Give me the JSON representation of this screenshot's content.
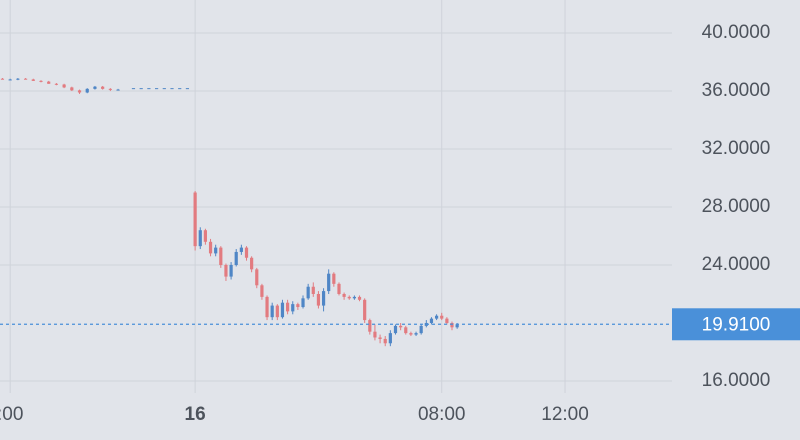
{
  "chart_data": {
    "type": "candlestick",
    "x": [
      -6.25,
      -6,
      -5.75,
      -5.5,
      -5.25,
      -5,
      -4.75,
      -4.5,
      -4.25,
      -4,
      -3.75,
      -3.5,
      -3.25,
      -3,
      -2.75,
      -2.5,
      -2,
      -1.75,
      -1.5,
      -1.25,
      -1,
      -0.75,
      -0.5,
      -0.25,
      0,
      0.167,
      0.333,
      0.5,
      0.667,
      0.833,
      1,
      1.167,
      1.333,
      1.5,
      1.667,
      1.833,
      2,
      2.167,
      2.333,
      2.5,
      2.667,
      2.833,
      3,
      3.167,
      3.333,
      3.5,
      3.667,
      3.833,
      4,
      4.167,
      4.333,
      4.5,
      4.667,
      4.833,
      5,
      5.167,
      5.333,
      5.5,
      5.667,
      5.833,
      6,
      6.167,
      6.333,
      6.5,
      6.667,
      6.833,
      7,
      7.167,
      7.333,
      7.5,
      7.667,
      7.833,
      8,
      8.167,
      8.333,
      8.5
    ],
    "open": [
      36.85,
      36.8,
      36.8,
      36.85,
      36.8,
      36.7,
      36.65,
      36.5,
      36.45,
      36.25,
      36.05,
      35.9,
      36.15,
      36.3,
      36.15,
      36.1,
      36.2,
      36.2,
      36.2,
      36.2,
      36.2,
      36.2,
      36.2,
      36.2,
      29.0,
      25.3,
      26.4,
      25.6,
      24.8,
      25.2,
      24.0,
      23.2,
      24.0,
      24.9,
      25.2,
      24.5,
      23.7,
      22.6,
      21.8,
      20.4,
      21.2,
      20.4,
      21.4,
      20.8,
      21.3,
      21.1,
      21.7,
      22.5,
      22.0,
      21.2,
      22.2,
      23.4,
      22.7,
      22.0,
      21.8,
      21.7,
      21.8,
      21.6,
      20.2,
      19.4,
      19.0,
      18.9,
      18.6,
      19.3,
      19.8,
      19.7,
      19.3,
      19.2,
      19.3,
      19.8,
      20.0,
      20.3,
      20.5,
      20.3,
      20.0,
      19.7
    ],
    "high": [
      36.9,
      36.85,
      36.9,
      36.9,
      36.85,
      36.75,
      36.7,
      36.55,
      36.5,
      36.3,
      36.1,
      36.2,
      36.35,
      36.35,
      36.2,
      36.15,
      36.2,
      36.2,
      36.2,
      36.2,
      36.2,
      36.2,
      36.2,
      36.2,
      29.1,
      26.6,
      26.5,
      25.8,
      25.4,
      25.3,
      24.1,
      24.2,
      25.1,
      25.4,
      25.3,
      24.6,
      23.8,
      22.7,
      21.9,
      21.4,
      21.3,
      21.6,
      21.6,
      21.5,
      21.4,
      21.9,
      22.7,
      22.8,
      22.2,
      22.4,
      23.7,
      23.5,
      22.8,
      22.1,
      21.9,
      21.9,
      21.9,
      21.7,
      20.3,
      19.9,
      19.2,
      19.1,
      19.5,
      19.9,
      20.0,
      19.8,
      19.4,
      19.4,
      19.9,
      20.2,
      20.4,
      20.6,
      20.7,
      20.4,
      20.1,
      20.0
    ],
    "low": [
      36.8,
      36.75,
      36.75,
      36.8,
      36.7,
      36.6,
      36.5,
      36.4,
      36.2,
      36.0,
      35.8,
      35.85,
      36.1,
      36.1,
      36.0,
      36.05,
      36.2,
      36.2,
      36.2,
      36.2,
      36.2,
      36.2,
      36.2,
      36.2,
      25.0,
      25.1,
      25.4,
      24.6,
      24.6,
      23.8,
      22.9,
      23.0,
      23.9,
      24.7,
      24.3,
      23.5,
      22.4,
      21.6,
      20.2,
      20.2,
      20.2,
      20.3,
      20.6,
      20.6,
      20.9,
      21.0,
      21.6,
      21.8,
      21.0,
      20.8,
      22.0,
      22.5,
      21.9,
      21.6,
      21.6,
      21.6,
      21.5,
      20.0,
      19.2,
      18.8,
      18.6,
      18.4,
      18.4,
      19.2,
      19.5,
      19.2,
      19.1,
      19.1,
      19.2,
      19.7,
      19.9,
      20.2,
      20.2,
      19.9,
      19.5,
      19.6
    ],
    "close": [
      36.8,
      36.8,
      36.85,
      36.8,
      36.7,
      36.65,
      36.5,
      36.45,
      36.25,
      36.05,
      35.9,
      36.15,
      36.3,
      36.15,
      36.1,
      36.1,
      36.2,
      36.2,
      36.2,
      36.2,
      36.2,
      36.2,
      36.2,
      36.2,
      25.3,
      26.4,
      25.6,
      24.8,
      25.2,
      24.0,
      23.2,
      24.0,
      24.9,
      25.2,
      24.5,
      23.7,
      22.6,
      21.8,
      20.4,
      21.2,
      20.4,
      21.4,
      20.8,
      21.3,
      21.1,
      21.7,
      22.5,
      22.0,
      21.2,
      22.2,
      23.4,
      22.7,
      22.0,
      21.8,
      21.7,
      21.8,
      21.6,
      20.2,
      19.4,
      19.0,
      18.9,
      18.6,
      19.3,
      19.8,
      19.7,
      19.3,
      19.2,
      19.3,
      19.8,
      20.0,
      20.3,
      20.5,
      20.3,
      20.0,
      19.7,
      19.91
    ],
    "up_color": "#4f86c6",
    "down_color": "#e27b80",
    "xlim": [
      -6.33,
      15.47
    ],
    "xticks": [
      {
        "value": -6,
        "label": ":00"
      },
      {
        "value": 0,
        "label": "16"
      },
      {
        "value": 8,
        "label": "08:00"
      },
      {
        "value": 12,
        "label": "12:00"
      }
    ],
    "ylim": [
      15.17,
      42.28
    ],
    "yticks": [
      {
        "value": 16,
        "label": "16.0000"
      },
      {
        "value": 24,
        "label": "24.0000"
      },
      {
        "value": 28,
        "label": "28.0000"
      },
      {
        "value": 32,
        "label": "32.0000"
      },
      {
        "value": 36,
        "label": "36.0000"
      },
      {
        "value": 40,
        "label": "40.0000"
      }
    ],
    "grid": true,
    "last_price": {
      "value": 19.91,
      "label": "19.9100"
    },
    "last_price_color": "#4a90d9"
  }
}
